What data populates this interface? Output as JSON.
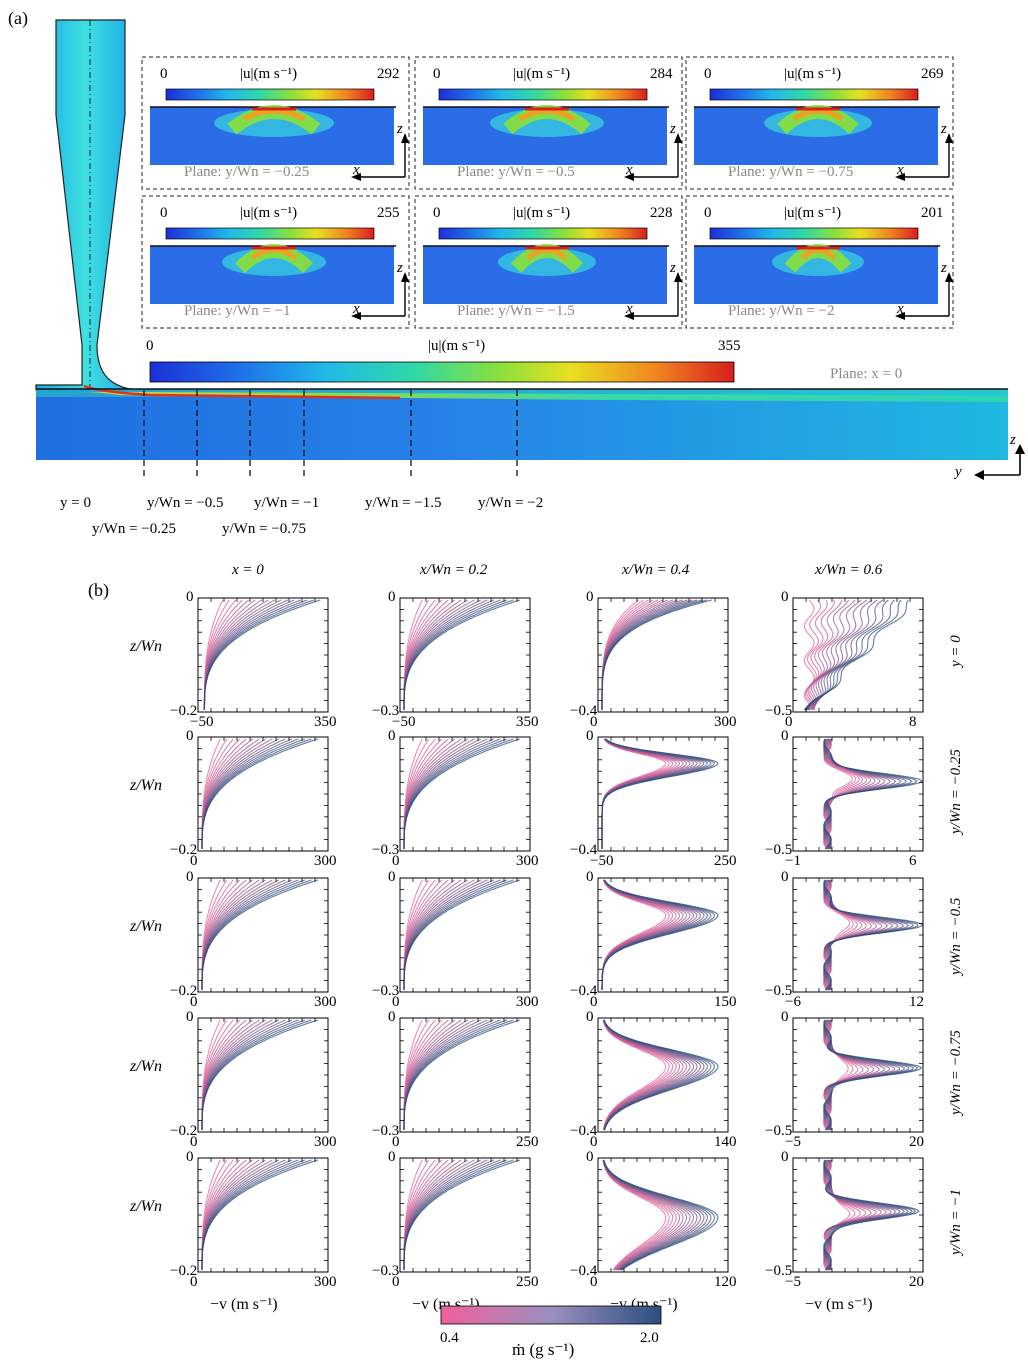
{
  "panel_a": {
    "label": "(a)",
    "insets": [
      {
        "cbar_min": "0",
        "cbar_title": "|u|(m s⁻¹)",
        "cbar_max": "292",
        "plane": "Plane: y/Wn = −0.25"
      },
      {
        "cbar_min": "0",
        "cbar_title": "|u|(m s⁻¹)",
        "cbar_max": "284",
        "plane": "Plane: y/Wn = −0.5"
      },
      {
        "cbar_min": "0",
        "cbar_title": "|u|(m s⁻¹)",
        "cbar_max": "269",
        "plane": "Plane: y/Wn = −0.75"
      },
      {
        "cbar_min": "0",
        "cbar_title": "|u|(m s⁻¹)",
        "cbar_max": "255",
        "plane": "Plane: y/Wn = −1"
      },
      {
        "cbar_min": "0",
        "cbar_title": "|u|(m s⁻¹)",
        "cbar_max": "228",
        "plane": "Plane: y/Wn = −1.5"
      },
      {
        "cbar_min": "0",
        "cbar_title": "|u|(m s⁻¹)",
        "cbar_max": "201",
        "plane": "Plane: y/Wn = −2"
      }
    ],
    "axis_x": "x",
    "axis_z": "z",
    "axis_y": "y",
    "main_cbar_min": "0",
    "main_cbar_max": "355",
    "main_cbar_title": "|u|(m s⁻¹)",
    "main_plane": "Plane: x = 0",
    "planes_bottom": [
      "y = 0",
      "y/Wn = −0.5",
      "y/Wn = −1",
      "y/Wn = −1.5",
      "y/Wn = −2"
    ],
    "planes_lower": [
      "y/Wn = −0.25",
      "y/Wn = −0.75"
    ]
  },
  "panel_b": {
    "label": "(b)",
    "col_titles": [
      "x = 0",
      "x/Wn = 0.2",
      "x/Wn = 0.4",
      "x/Wn = 0.6"
    ],
    "row_titles": [
      "y = 0",
      "y/Wn = −0.25",
      "y/Wn = −0.5",
      "y/Wn = −0.75",
      "y/Wn = −1"
    ],
    "ylabel": "z/Wn",
    "xlabel": "−v (m s⁻¹)",
    "cbar_min": "0.4",
    "cbar_max": "2.0",
    "cbar_title": "ṁ (g s⁻¹)"
  },
  "chart_data": {
    "type": "line",
    "description_keys": "grid of velocity profiles, curves coloured by mass flow rate",
    "colorbar_range": [
      0.4,
      2.0
    ],
    "colors": {
      "low": "#f0609a",
      "high": "#2b4f7e"
    },
    "grid": [
      [
        {
          "xlim": [
            -50,
            350
          ],
          "ylim": [
            -0.2,
            0
          ],
          "xticks": [
            "−50",
            "350"
          ],
          "yticks": [
            "0",
            "−0.2"
          ]
        },
        {
          "xlim": [
            -50,
            350
          ],
          "ylim": [
            -0.3,
            0
          ],
          "xticks": [
            "−50",
            "350"
          ],
          "yticks": [
            "0",
            "−0.3"
          ]
        },
        {
          "xlim": [
            0,
            300
          ],
          "ylim": [
            -0.4,
            0
          ],
          "xticks": [
            "0",
            "300"
          ],
          "yticks": [
            "0",
            "−0.4"
          ]
        },
        {
          "xlim": [
            0,
            8
          ],
          "ylim": [
            -0.5,
            0
          ],
          "xticks": [
            "0",
            "8"
          ],
          "yticks": [
            "0",
            "−0.5"
          ]
        }
      ],
      [
        {
          "xlim": [
            0,
            300
          ],
          "ylim": [
            -0.2,
            0
          ],
          "xticks": [
            "0",
            "300"
          ],
          "yticks": [
            "0",
            "−0.2"
          ]
        },
        {
          "xlim": [
            0,
            300
          ],
          "ylim": [
            -0.3,
            0
          ],
          "xticks": [
            "0",
            "300"
          ],
          "yticks": [
            "0",
            "−0.3"
          ]
        },
        {
          "xlim": [
            -50,
            250
          ],
          "ylim": [
            -0.4,
            0
          ],
          "xticks": [
            "−50",
            "250"
          ],
          "yticks": [
            "0",
            "−0.4"
          ]
        },
        {
          "xlim": [
            -1,
            6
          ],
          "ylim": [
            -0.5,
            0
          ],
          "xticks": [
            "−1",
            "6"
          ],
          "yticks": [
            "0",
            "−0.5"
          ]
        }
      ],
      [
        {
          "xlim": [
            0,
            300
          ],
          "ylim": [
            -0.2,
            0
          ],
          "xticks": [
            "0",
            "300"
          ],
          "yticks": [
            "0",
            "−0.2"
          ]
        },
        {
          "xlim": [
            0,
            300
          ],
          "ylim": [
            -0.3,
            0
          ],
          "xticks": [
            "0",
            "300"
          ],
          "yticks": [
            "0",
            "−0.3"
          ]
        },
        {
          "xlim": [
            0,
            150
          ],
          "ylim": [
            -0.4,
            0
          ],
          "xticks": [
            "0",
            "150"
          ],
          "yticks": [
            "0",
            "−0.4"
          ]
        },
        {
          "xlim": [
            -6,
            12
          ],
          "ylim": [
            -0.5,
            0
          ],
          "xticks": [
            "−6",
            "12"
          ],
          "yticks": [
            "0",
            "−0.5"
          ]
        }
      ],
      [
        {
          "xlim": [
            0,
            300
          ],
          "ylim": [
            -0.2,
            0
          ],
          "xticks": [
            "0",
            "300"
          ],
          "yticks": [
            "0",
            "−0.2"
          ]
        },
        {
          "xlim": [
            0,
            250
          ],
          "ylim": [
            -0.3,
            0
          ],
          "xticks": [
            "0",
            "250"
          ],
          "yticks": [
            "0",
            "−0.3"
          ]
        },
        {
          "xlim": [
            0,
            140
          ],
          "ylim": [
            -0.4,
            0
          ],
          "xticks": [
            "0",
            "140"
          ],
          "yticks": [
            "0",
            "−0.4"
          ]
        },
        {
          "xlim": [
            -5,
            20
          ],
          "ylim": [
            -0.5,
            0
          ],
          "xticks": [
            "−5",
            "20"
          ],
          "yticks": [
            "0",
            "−0.5"
          ]
        }
      ],
      [
        {
          "xlim": [
            0,
            300
          ],
          "ylim": [
            -0.2,
            0
          ],
          "xticks": [
            "0",
            "300"
          ],
          "yticks": [
            "0",
            "−0.2"
          ]
        },
        {
          "xlim": [
            0,
            250
          ],
          "ylim": [
            -0.3,
            0
          ],
          "xticks": [
            "0",
            "250"
          ],
          "yticks": [
            "0",
            "−0.3"
          ]
        },
        {
          "xlim": [
            0,
            120
          ],
          "ylim": [
            -0.4,
            0
          ],
          "xticks": [
            "0",
            "120"
          ],
          "yticks": [
            "0",
            "−0.4"
          ]
        },
        {
          "xlim": [
            -5,
            20
          ],
          "ylim": [
            -0.5,
            0
          ],
          "xticks": [
            "−5",
            "20"
          ],
          "yticks": [
            "0",
            "−0.5"
          ]
        }
      ]
    ]
  }
}
